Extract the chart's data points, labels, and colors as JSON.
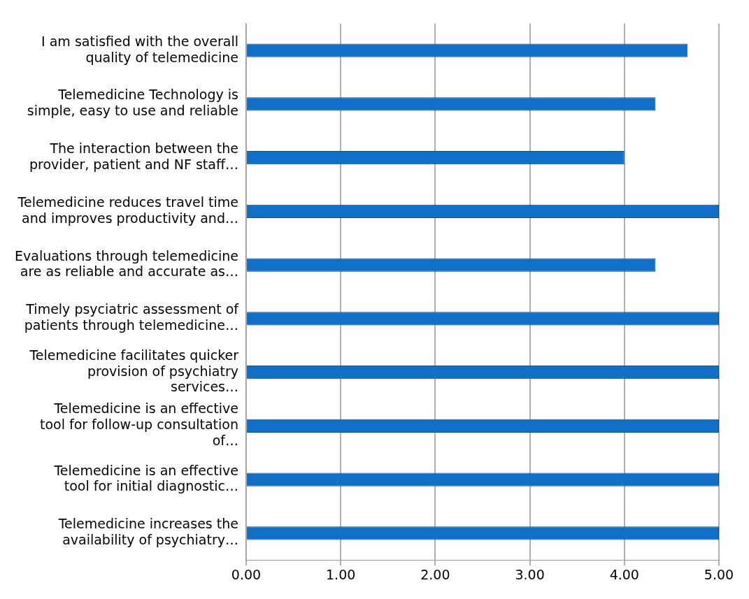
{
  "chart_data": {
    "type": "bar",
    "orientation": "horizontal",
    "categories": [
      "I am satisfied with the overall quality of telemedicine",
      "Telemedicine Technology is simple, easy to use and reliable",
      "The interaction between the provider, patient and NF staff…",
      "Telemedicine reduces travel time and improves productivity and…",
      "Evaluations through telemedicine are as reliable and accurate as…",
      "Timely psyciatric assessment of patients through telemedicine…",
      "Telemedicine facilitates quicker provision of psychiatry services…",
      "Telemedicine is an effective tool for follow-up consultation of…",
      "Telemedicine is an effective tool for initial diagnostic…",
      "Telemedicine increases the availability of psychiatry…"
    ],
    "values": [
      4.67,
      4.33,
      4.0,
      5,
      4.33,
      5,
      5,
      5,
      5,
      5
    ],
    "color": "#1070c8",
    "xlim": [
      0,
      5
    ],
    "xticks": [
      {
        "value": 0,
        "label": "0.00"
      },
      {
        "value": 1,
        "label": "1.00"
      },
      {
        "value": 2,
        "label": "2.00"
      },
      {
        "value": 3,
        "label": "3.00"
      },
      {
        "value": 4,
        "label": "4.00"
      },
      {
        "value": 5,
        "label": "5.00"
      }
    ],
    "grid": "x",
    "legend": false
  }
}
